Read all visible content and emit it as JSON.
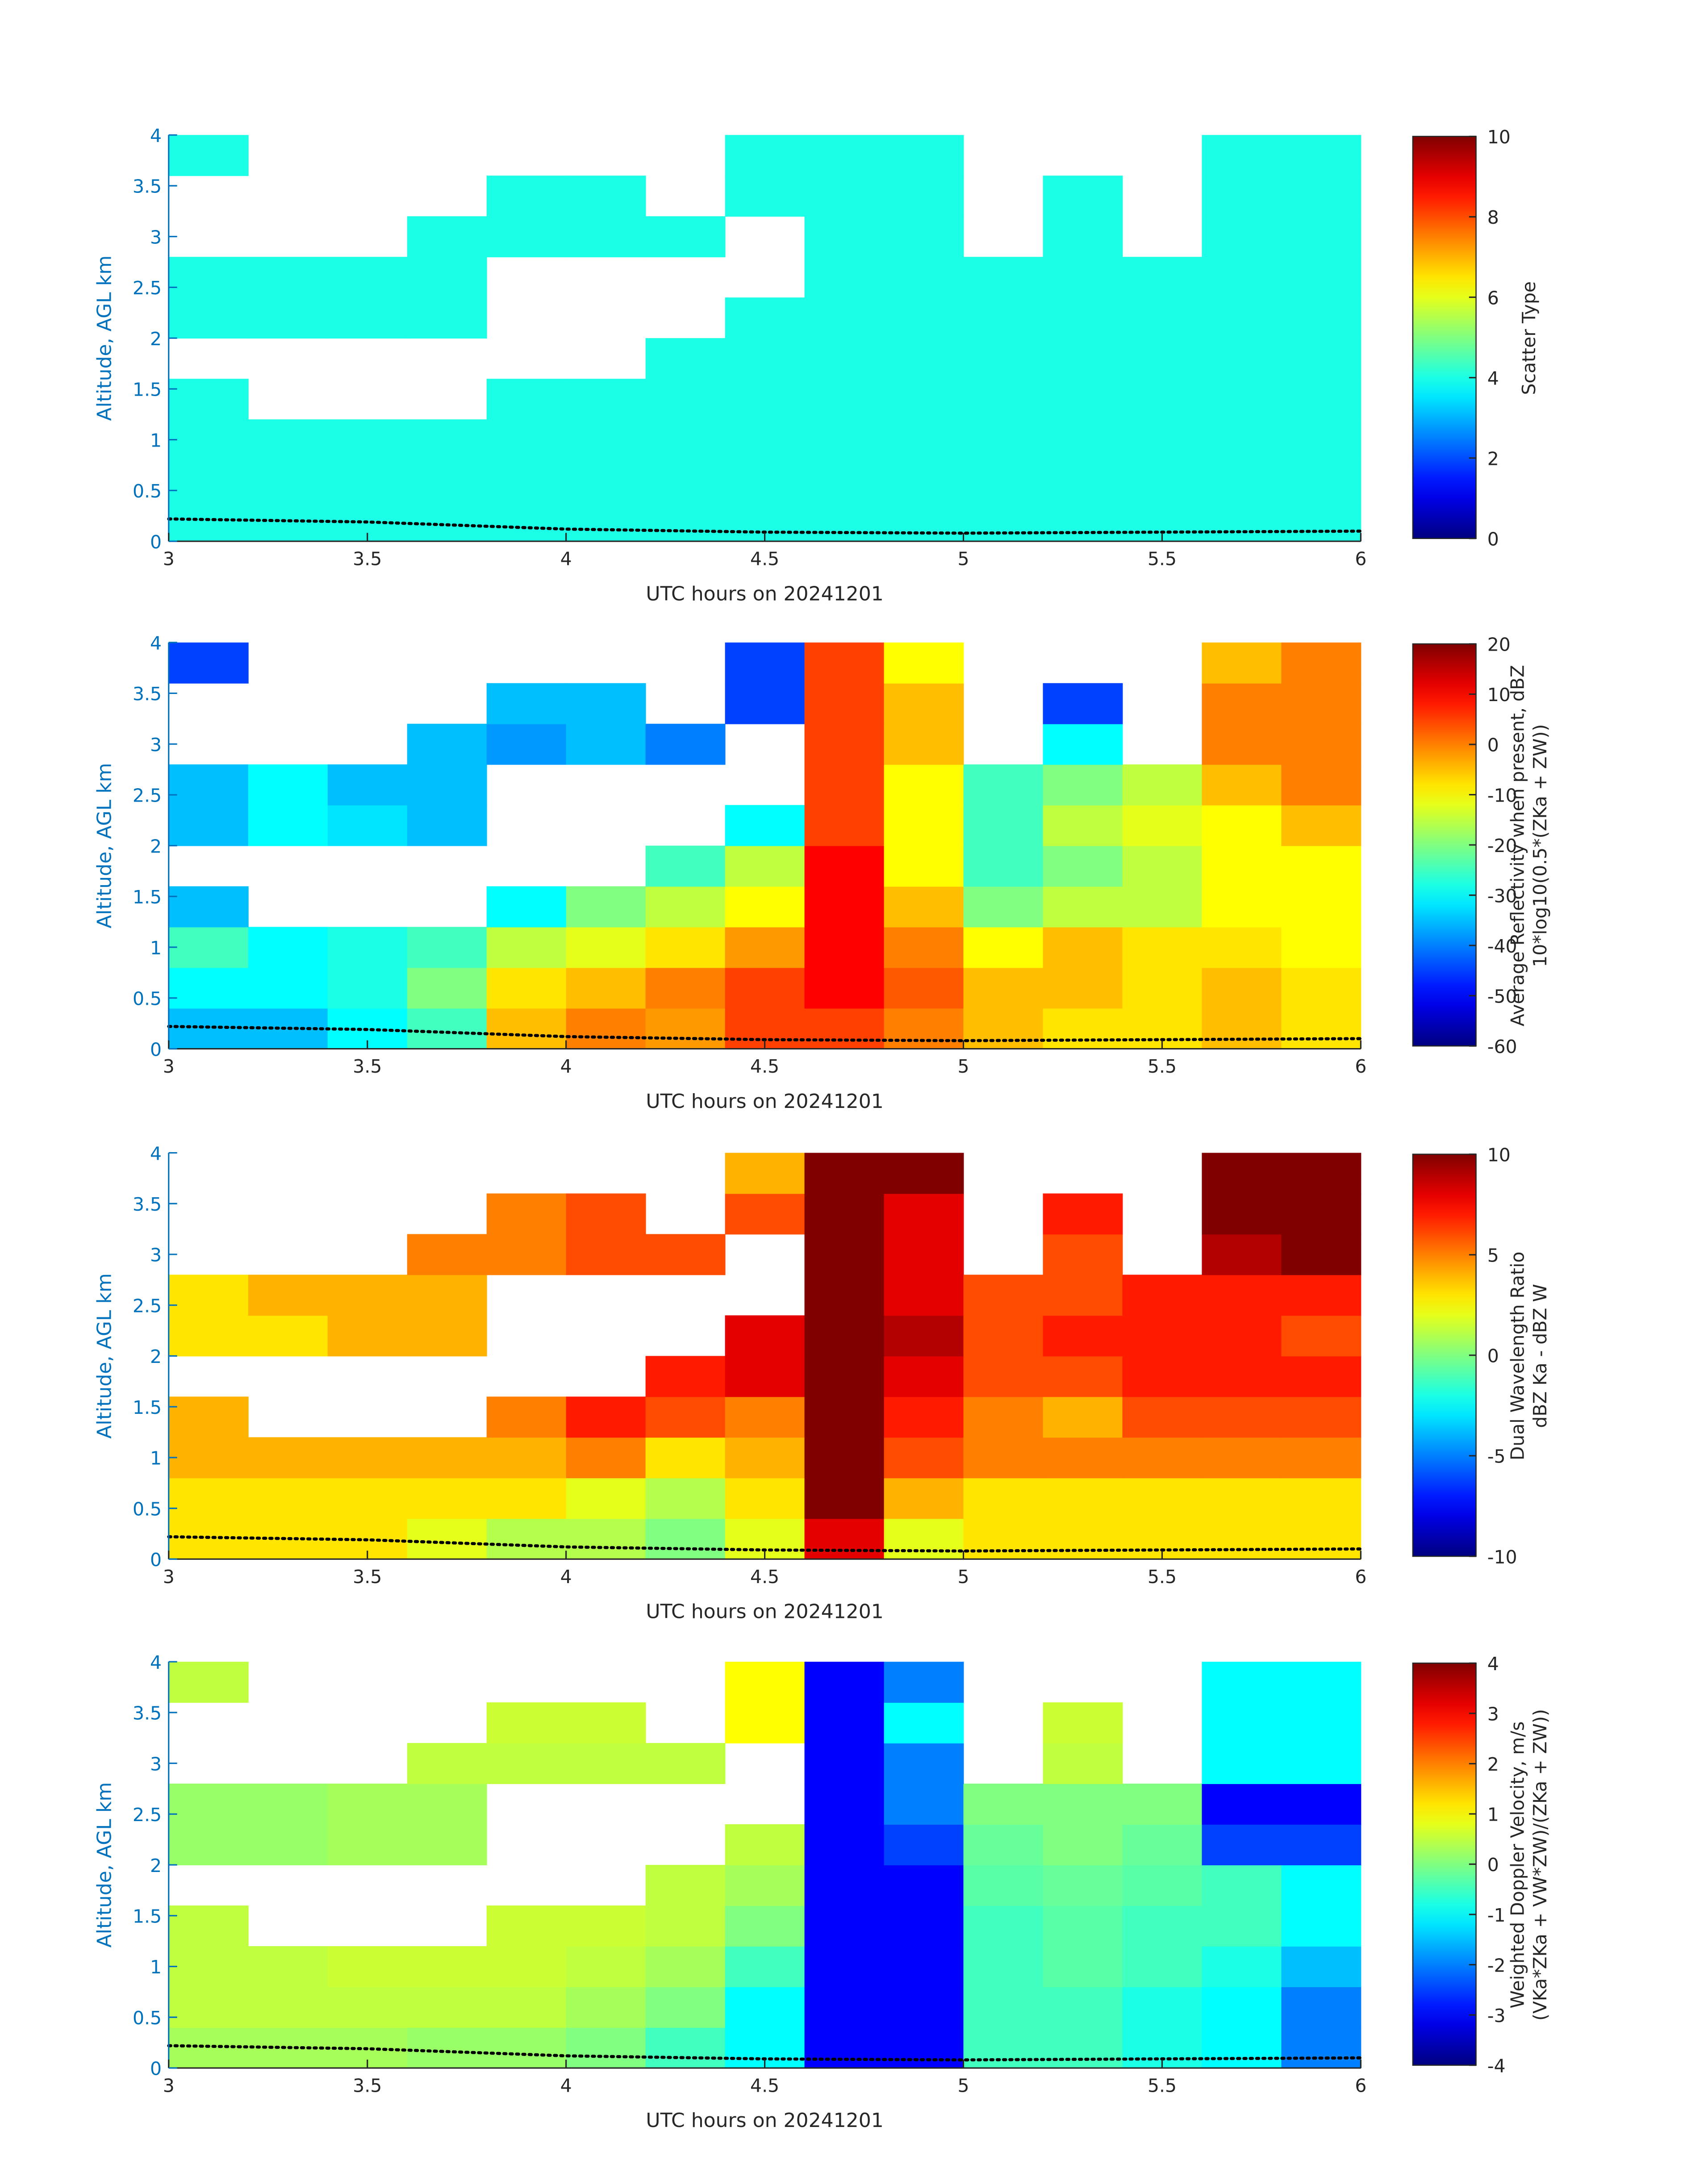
{
  "chart_data": [
    {
      "type": "heatmap",
      "xlabel": "UTC hours on 20241201",
      "ylabel": "Altitude, AGL km",
      "colorbar_label": [
        "Scatter Type"
      ],
      "colormap": "jet",
      "xlim": [
        3,
        6
      ],
      "ylim": [
        0,
        4
      ],
      "xticks": [
        3,
        3.5,
        4,
        4.5,
        5,
        5.5,
        6
      ],
      "yticks": [
        0,
        0.5,
        1,
        1.5,
        2,
        2.5,
        3,
        3.5,
        4
      ],
      "clim": [
        0,
        10
      ],
      "cticks": [
        0,
        2,
        4,
        6,
        8,
        10
      ],
      "x": [
        3.1,
        3.3,
        3.5,
        3.7,
        3.9,
        4.1,
        4.3,
        4.5,
        4.7,
        4.9,
        5.1,
        5.3,
        5.5,
        5.7,
        5.9
      ],
      "y": [
        0.2,
        0.6,
        1.0,
        1.4,
        1.8,
        2.2,
        2.6,
        3.0,
        3.4,
        3.8
      ],
      "z": [
        [
          4,
          4,
          4,
          4,
          4,
          4,
          4,
          4,
          4,
          4,
          4,
          4,
          4,
          4,
          4
        ],
        [
          4,
          4,
          4,
          4,
          4,
          4,
          4,
          4,
          4,
          4,
          4,
          4,
          4,
          4,
          4
        ],
        [
          4,
          4,
          4,
          4,
          4,
          4,
          4,
          4,
          4,
          4,
          4,
          4,
          4,
          4,
          4
        ],
        [
          4,
          null,
          null,
          null,
          4,
          4,
          4,
          4,
          4,
          4,
          4,
          4,
          4,
          4,
          4
        ],
        [
          null,
          null,
          null,
          null,
          null,
          null,
          4,
          4,
          4,
          4,
          4,
          4,
          4,
          4,
          4
        ],
        [
          4,
          4,
          4,
          4,
          null,
          null,
          null,
          4,
          4,
          4,
          4,
          4,
          4,
          4,
          4
        ],
        [
          4,
          4,
          4,
          4,
          null,
          null,
          null,
          null,
          4,
          4,
          4,
          4,
          4,
          4,
          4
        ],
        [
          null,
          null,
          null,
          4,
          4,
          4,
          4,
          null,
          4,
          4,
          null,
          4,
          null,
          4,
          4
        ],
        [
          null,
          null,
          null,
          null,
          4,
          4,
          null,
          4,
          4,
          4,
          null,
          4,
          null,
          4,
          4
        ],
        [
          4,
          null,
          null,
          null,
          null,
          null,
          null,
          4,
          4,
          4,
          null,
          null,
          null,
          4,
          4
        ]
      ],
      "surface": {
        "x": [
          3,
          3.5,
          4,
          4.5,
          5,
          5.5,
          6
        ],
        "y": [
          0.22,
          0.19,
          0.12,
          0.09,
          0.08,
          0.09,
          0.1
        ]
      }
    },
    {
      "type": "heatmap",
      "xlabel": "UTC hours on 20241201",
      "ylabel": "Altitude, AGL km",
      "colorbar_label": [
        "Average Reflectivity when present, dBZ",
        "10*log10(0.5*(ZKa + ZW))"
      ],
      "colormap": "jet",
      "xlim": [
        3,
        6
      ],
      "ylim": [
        0,
        4
      ],
      "xticks": [
        3,
        3.5,
        4,
        4.5,
        5,
        5.5,
        6
      ],
      "yticks": [
        0,
        0.5,
        1,
        1.5,
        2,
        2.5,
        3,
        3.5,
        4
      ],
      "clim": [
        -60,
        20
      ],
      "cticks": [
        -60,
        -50,
        -40,
        -30,
        -20,
        -10,
        0,
        10,
        20
      ],
      "x": [
        3.1,
        3.3,
        3.5,
        3.7,
        3.9,
        4.1,
        4.3,
        4.5,
        4.7,
        4.9,
        5.1,
        5.3,
        5.5,
        5.7,
        5.9
      ],
      "y": [
        0.2,
        0.6,
        1.0,
        1.4,
        1.8,
        2.2,
        2.6,
        3.0,
        3.4,
        3.8
      ],
      "z": [
        [
          -35,
          -35,
          -30,
          -25,
          -5,
          0,
          -2,
          5,
          5,
          0,
          -5,
          -8,
          -8,
          -5,
          -8
        ],
        [
          -30,
          -30,
          -28,
          -20,
          -8,
          -5,
          0,
          5,
          10,
          3,
          -5,
          -5,
          -8,
          -5,
          -8
        ],
        [
          -25,
          -30,
          -28,
          -25,
          -15,
          -12,
          -8,
          -2,
          10,
          0,
          -10,
          -5,
          -8,
          -8,
          -10
        ],
        [
          -35,
          null,
          null,
          null,
          -30,
          -20,
          -15,
          -10,
          10,
          -5,
          -20,
          -15,
          -15,
          -10,
          -10
        ],
        [
          null,
          null,
          null,
          null,
          null,
          null,
          -25,
          -15,
          10,
          -10,
          -25,
          -20,
          -15,
          -10,
          -10
        ],
        [
          -35,
          -30,
          -32,
          -35,
          null,
          null,
          null,
          -30,
          5,
          -10,
          -25,
          -15,
          -12,
          -10,
          -5
        ],
        [
          -35,
          -30,
          -35,
          -35,
          null,
          null,
          null,
          null,
          5,
          -10,
          -25,
          -20,
          -15,
          -5,
          0
        ],
        [
          null,
          null,
          null,
          -35,
          -38,
          -35,
          -40,
          null,
          5,
          -5,
          null,
          -30,
          null,
          0,
          0
        ],
        [
          null,
          null,
          null,
          null,
          -35,
          -35,
          null,
          -45,
          5,
          -5,
          null,
          -45,
          null,
          0,
          0
        ],
        [
          -45,
          null,
          null,
          null,
          null,
          null,
          null,
          -45,
          5,
          -10,
          null,
          null,
          null,
          -5,
          0
        ]
      ],
      "surface": {
        "x": [
          3,
          3.5,
          4,
          4.5,
          5,
          5.5,
          6
        ],
        "y": [
          0.22,
          0.19,
          0.12,
          0.09,
          0.08,
          0.09,
          0.1
        ]
      }
    },
    {
      "type": "heatmap",
      "xlabel": "UTC hours on 20241201",
      "ylabel": "Altitude, AGL km",
      "colorbar_label": [
        "Dual Wavelength Ratio",
        "dBZ Ka - dBZ W"
      ],
      "colormap": "jet",
      "xlim": [
        3,
        6
      ],
      "ylim": [
        0,
        4
      ],
      "xticks": [
        3,
        3.5,
        4,
        4.5,
        5,
        5.5,
        6
      ],
      "yticks": [
        0,
        0.5,
        1,
        1.5,
        2,
        2.5,
        3,
        3.5,
        4
      ],
      "clim": [
        -10,
        10
      ],
      "cticks": [
        -10,
        -5,
        0,
        5,
        10
      ],
      "x": [
        3.1,
        3.3,
        3.5,
        3.7,
        3.9,
        4.1,
        4.3,
        4.5,
        4.7,
        4.9,
        5.1,
        5.3,
        5.5,
        5.7,
        5.9
      ],
      "y": [
        0.2,
        0.6,
        1.0,
        1.4,
        1.8,
        2.2,
        2.6,
        3.0,
        3.4,
        3.8
      ],
      "z": [
        [
          3,
          3,
          3,
          2,
          1,
          1,
          0,
          2,
          8,
          2,
          3,
          3,
          3,
          3,
          3
        ],
        [
          3,
          3,
          3,
          3,
          3,
          2,
          1,
          3,
          10,
          4,
          3,
          3,
          3,
          3,
          3
        ],
        [
          4,
          4,
          4,
          4,
          4,
          5,
          3,
          4,
          10,
          6,
          5,
          5,
          5,
          5,
          5
        ],
        [
          4,
          null,
          null,
          null,
          5,
          7,
          6,
          5,
          10,
          7,
          5,
          4,
          6,
          6,
          6
        ],
        [
          null,
          null,
          null,
          null,
          null,
          null,
          7,
          8,
          10,
          8,
          6,
          6,
          7,
          7,
          7
        ],
        [
          3,
          3,
          4,
          4,
          null,
          null,
          null,
          8,
          10,
          9,
          6,
          7,
          7,
          7,
          6
        ],
        [
          3,
          4,
          4,
          4,
          null,
          null,
          null,
          null,
          10,
          8,
          6,
          6,
          7,
          7,
          7
        ],
        [
          null,
          null,
          null,
          5,
          5,
          6,
          6,
          null,
          10,
          8,
          null,
          6,
          null,
          9,
          10
        ],
        [
          null,
          null,
          null,
          null,
          5,
          6,
          null,
          6,
          10,
          8,
          null,
          7,
          null,
          10,
          10
        ],
        [
          null,
          null,
          null,
          null,
          null,
          null,
          null,
          4,
          10,
          10,
          null,
          null,
          null,
          10,
          10
        ]
      ],
      "surface": {
        "x": [
          3,
          3.5,
          4,
          4.5,
          5,
          5.5,
          6
        ],
        "y": [
          0.22,
          0.19,
          0.12,
          0.09,
          0.08,
          0.09,
          0.1
        ]
      }
    },
    {
      "type": "heatmap",
      "xlabel": "UTC hours on 20241201",
      "ylabel": "Altitude, AGL km",
      "colorbar_label": [
        "Weighted Doppler Velocity, m/s",
        "(VKa*ZKa + VW*ZW)/(ZKa + ZW))"
      ],
      "colormap": "jet",
      "xlim": [
        3,
        6
      ],
      "ylim": [
        0,
        4
      ],
      "xticks": [
        3,
        3.5,
        4,
        4.5,
        5,
        5.5,
        6
      ],
      "yticks": [
        0,
        0.5,
        1,
        1.5,
        2,
        2.5,
        3,
        3.5,
        4
      ],
      "clim": [
        -4,
        4
      ],
      "cticks": [
        -4,
        -3,
        -2,
        -1,
        0,
        1,
        2,
        3,
        4
      ],
      "x": [
        3.1,
        3.3,
        3.5,
        3.7,
        3.9,
        4.1,
        4.3,
        4.5,
        4.7,
        4.9,
        5.1,
        5.3,
        5.5,
        5.7,
        5.9
      ],
      "y": [
        0.2,
        0.6,
        1.0,
        1.4,
        1.8,
        2.2,
        2.6,
        3.0,
        3.4,
        3.8
      ],
      "z": [
        [
          0.3,
          0.3,
          0.3,
          0.2,
          0.2,
          0,
          -0.5,
          -1,
          -3,
          -3,
          -0.5,
          -0.5,
          -0.8,
          -1,
          -2
        ],
        [
          0.5,
          0.5,
          0.5,
          0.5,
          0.5,
          0.3,
          0,
          -1,
          -3,
          -3,
          -0.5,
          -0.5,
          -0.8,
          -1,
          -2
        ],
        [
          0.5,
          0.5,
          0.6,
          0.6,
          0.6,
          0.5,
          0.3,
          -0.5,
          -3,
          -3,
          -0.5,
          -0.3,
          -0.5,
          -0.8,
          -1.5
        ],
        [
          0.5,
          null,
          null,
          null,
          0.6,
          0.6,
          0.5,
          0,
          -3,
          -3,
          -0.5,
          -0.3,
          -0.5,
          -0.5,
          -1
        ],
        [
          null,
          null,
          null,
          null,
          null,
          null,
          0.5,
          0.3,
          -3,
          -3,
          -0.3,
          -0.2,
          -0.3,
          -0.5,
          -1
        ],
        [
          0.2,
          0.2,
          0.3,
          0.3,
          null,
          null,
          null,
          0.5,
          -3,
          -2.5,
          -0.2,
          0,
          -0.2,
          -2.5,
          -2.5
        ],
        [
          0.2,
          0.2,
          0.3,
          0.3,
          null,
          null,
          null,
          null,
          -3,
          -2,
          0,
          0,
          0,
          -3,
          -3
        ],
        [
          null,
          null,
          null,
          0.5,
          0.5,
          0.5,
          0.5,
          null,
          -3,
          -2,
          null,
          0.5,
          null,
          -1,
          -1
        ],
        [
          null,
          null,
          null,
          null,
          0.6,
          0.6,
          null,
          1,
          -3,
          -1,
          null,
          0.6,
          null,
          -1,
          -1
        ],
        [
          0.5,
          null,
          null,
          null,
          null,
          null,
          null,
          1,
          -3,
          -2,
          null,
          null,
          null,
          -1,
          -1
        ]
      ],
      "surface": {
        "x": [
          3,
          3.5,
          4,
          4.5,
          5,
          5.5,
          6
        ],
        "y": [
          0.22,
          0.19,
          0.12,
          0.09,
          0.08,
          0.09,
          0.1
        ]
      }
    }
  ]
}
